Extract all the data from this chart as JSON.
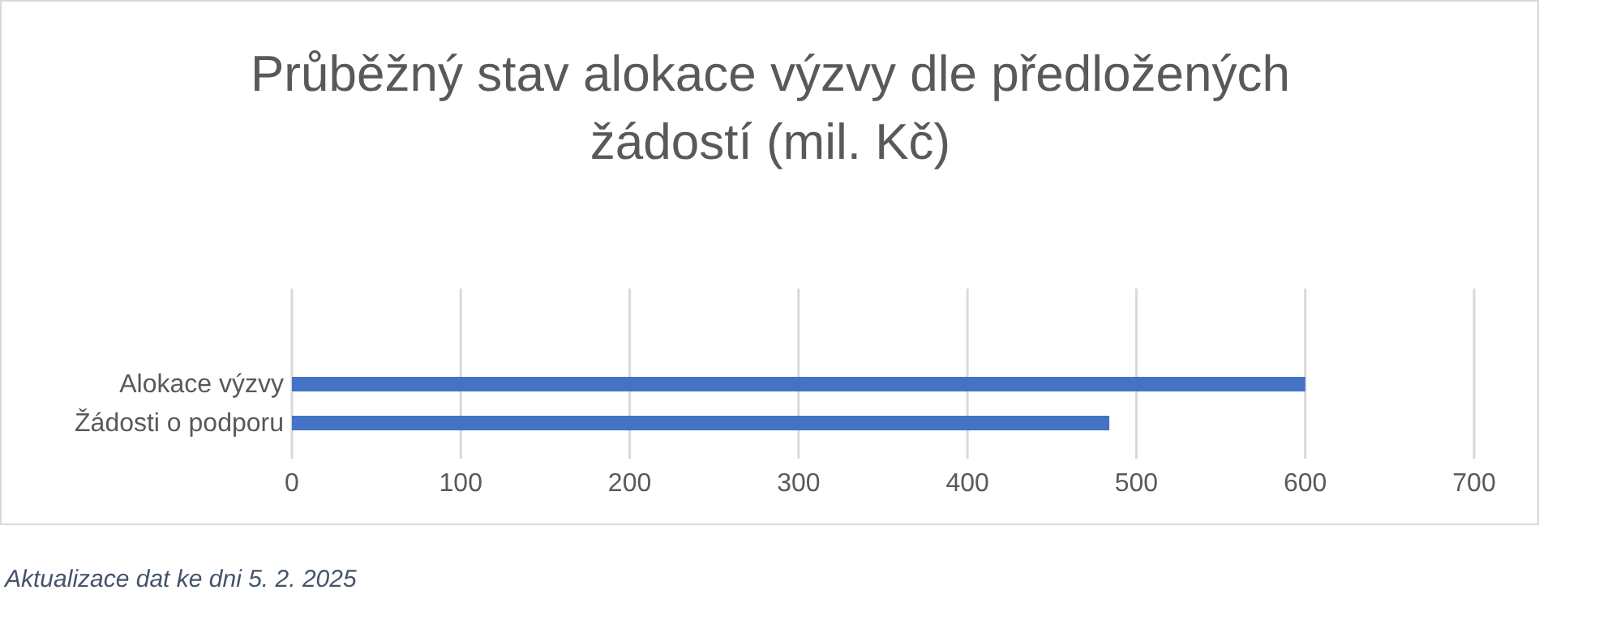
{
  "chart_data": {
    "type": "bar",
    "orientation": "horizontal",
    "title": "Průběžný stav alokace výzvy dle předložených žádostí (mil. Kč)",
    "categories": [
      "Alokace výzvy",
      "Žádosti o podporu"
    ],
    "series": [
      {
        "color": "#4472c4",
        "values": [
          600,
          484
        ]
      }
    ],
    "xlim": [
      0,
      700
    ],
    "xticks": [
      0,
      100,
      200,
      300,
      400,
      500,
      600,
      700
    ],
    "grid": "x",
    "annotations": [
      "Aktualizace dat ke dni 5. 2. 2025"
    ]
  }
}
